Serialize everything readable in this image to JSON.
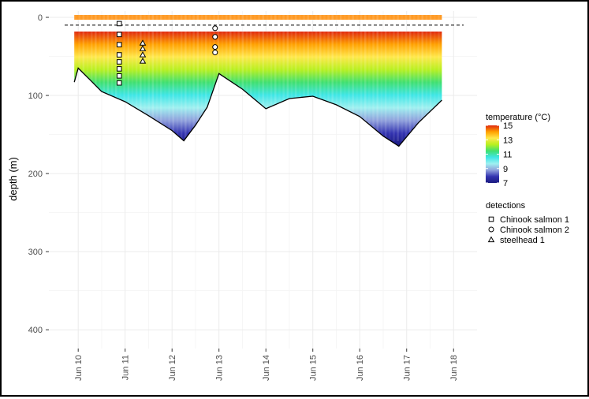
{
  "chart_data": {
    "type": "heatmap",
    "title": "",
    "xlabel": "",
    "ylabel": "depth (m)",
    "y_reversed": true,
    "ylim": [
      0,
      420
    ],
    "xlim": [
      "Jun 09 09:00",
      "Jun 18 12:00"
    ],
    "x_tick_labels": [
      "Jun 10",
      "Jun 11",
      "Jun 12",
      "Jun 13",
      "Jun 14",
      "Jun 15",
      "Jun 16",
      "Jun 17",
      "Jun 18"
    ],
    "y_ticks": [
      0,
      100,
      200,
      300,
      400
    ],
    "grid": true,
    "reference_line": {
      "depth": 10,
      "style": "dashed"
    },
    "temperature_scale": {
      "title": "temperature (°C)",
      "min": 7,
      "max": 15,
      "tick_labels": [
        "15",
        "13",
        "11",
        "9",
        "7"
      ],
      "colors": [
        "#1a1a80",
        "#3333b0",
        "#8fa0dc",
        "#9ff0f0",
        "#3ee6e6",
        "#40e070",
        "#b8f020",
        "#ffe84a",
        "#ffa000",
        "#e02a10"
      ]
    },
    "seafloor_depth": [
      {
        "x": "Jun 09 22:00",
        "depth": 83
      },
      {
        "x": "Jun 10 00:00",
        "depth": 65
      },
      {
        "x": "Jun 10 06:00",
        "depth": 80
      },
      {
        "x": "Jun 10 12:00",
        "depth": 95
      },
      {
        "x": "Jun 11 00:00",
        "depth": 108
      },
      {
        "x": "Jun 11 12:00",
        "depth": 126
      },
      {
        "x": "Jun 12 00:00",
        "depth": 145
      },
      {
        "x": "Jun 12 06:00",
        "depth": 158
      },
      {
        "x": "Jun 12 12:00",
        "depth": 138
      },
      {
        "x": "Jun 12 18:00",
        "depth": 115
      },
      {
        "x": "Jun 13 00:00",
        "depth": 72
      },
      {
        "x": "Jun 13 12:00",
        "depth": 92
      },
      {
        "x": "Jun 14 00:00",
        "depth": 117
      },
      {
        "x": "Jun 14 12:00",
        "depth": 104
      },
      {
        "x": "Jun 15 00:00",
        "depth": 101
      },
      {
        "x": "Jun 15 12:00",
        "depth": 112
      },
      {
        "x": "Jun 16 00:00",
        "depth": 127
      },
      {
        "x": "Jun 16 12:00",
        "depth": 152
      },
      {
        "x": "Jun 16 20:00",
        "depth": 165
      },
      {
        "x": "Jun 17 06:00",
        "depth": 135
      },
      {
        "x": "Jun 17 18:00",
        "depth": 106
      }
    ],
    "detection_legend_title": "detections",
    "detections": [
      {
        "name": "Chinook salmon 1",
        "marker": "square",
        "points": [
          {
            "x": "Jun 10 21:00",
            "depth": 8
          },
          {
            "x": "Jun 10 21:00",
            "depth": 22
          },
          {
            "x": "Jun 10 21:00",
            "depth": 35
          },
          {
            "x": "Jun 10 21:00",
            "depth": 48
          },
          {
            "x": "Jun 10 21:00",
            "depth": 57
          },
          {
            "x": "Jun 10 21:00",
            "depth": 66
          },
          {
            "x": "Jun 10 21:00",
            "depth": 75
          },
          {
            "x": "Jun 10 21:00",
            "depth": 84
          }
        ]
      },
      {
        "name": "Chinook salmon 2",
        "marker": "circle",
        "points": [
          {
            "x": "Jun 12 22:00",
            "depth": 14
          },
          {
            "x": "Jun 12 22:00",
            "depth": 25
          },
          {
            "x": "Jun 12 22:00",
            "depth": 38
          },
          {
            "x": "Jun 12 22:00",
            "depth": 45
          }
        ]
      },
      {
        "name": "steelhead 1",
        "marker": "triangle",
        "points": [
          {
            "x": "Jun 11 09:00",
            "depth": 33
          },
          {
            "x": "Jun 11 09:00",
            "depth": 40
          },
          {
            "x": "Jun 11 09:00",
            "depth": 48
          },
          {
            "x": "Jun 11 09:00",
            "depth": 56
          }
        ]
      }
    ]
  }
}
